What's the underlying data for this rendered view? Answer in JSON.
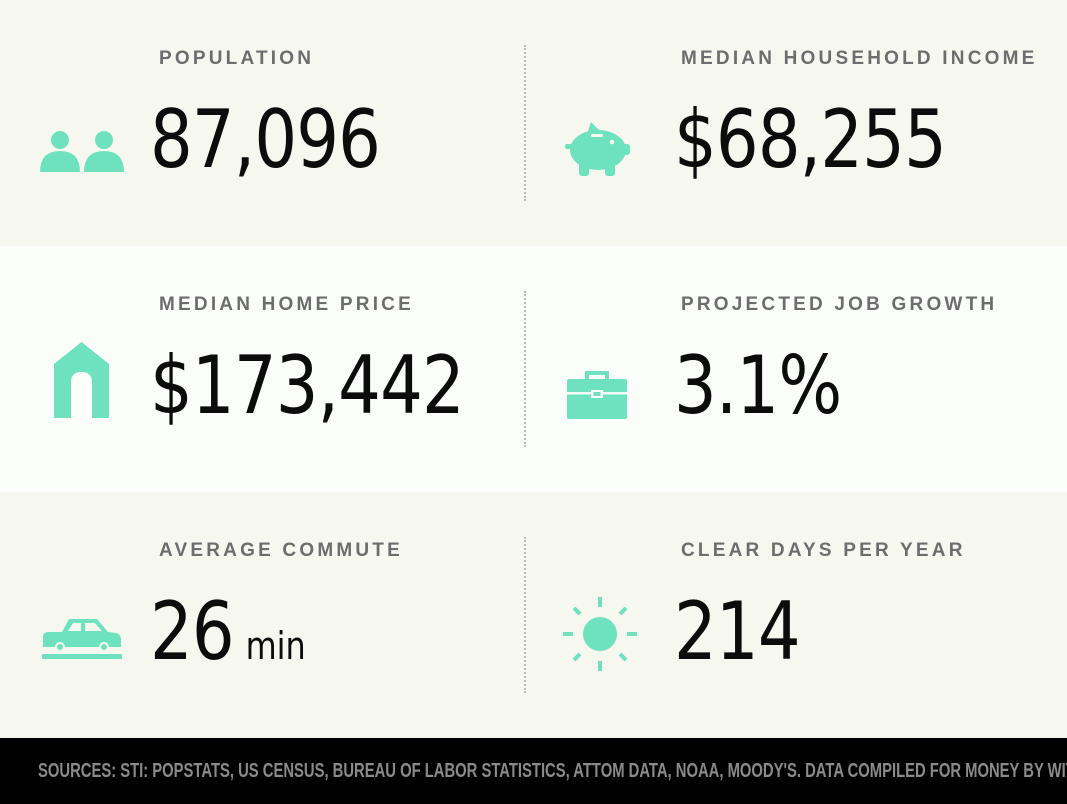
{
  "stats": {
    "population": {
      "label": "POPULATION",
      "value": "87,096",
      "icon": "people-icon"
    },
    "median_household_income": {
      "label": "MEDIAN HOUSEHOLD INCOME",
      "value": "$68,255",
      "icon": "piggy-bank-icon"
    },
    "median_home_price": {
      "label": "MEDIAN HOME PRICE",
      "value": "$173,442",
      "icon": "house-icon"
    },
    "projected_job_growth": {
      "label": "PROJECTED JOB GROWTH",
      "value": "3.1%",
      "icon": "briefcase-icon"
    },
    "average_commute": {
      "label": "AVERAGE COMMUTE",
      "value": "26",
      "unit": "min",
      "icon": "car-icon"
    },
    "clear_days_per_year": {
      "label": "CLEAR DAYS PER YEAR",
      "value": "214",
      "icon": "sun-icon"
    }
  },
  "footer": {
    "sources": "SOURCES: STI: POPSTATS, US CENSUS, BUREAU OF LABOR STATISTICS, ATTOM DATA, NOAA, MOODY'S. DATA COMPILED FOR MONEY BY WITLYTIC."
  },
  "colors": {
    "accent": "#6ee2bf",
    "band_dark": "#f6f8f0",
    "band_light": "#fbfdfb",
    "label": "#6d6d6d",
    "value": "#0c0c0c",
    "footer_bg": "#000000",
    "footer_text": "#8a8a8a"
  }
}
